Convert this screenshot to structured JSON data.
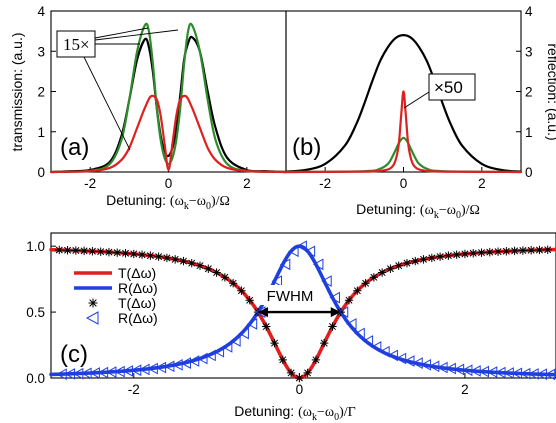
{
  "chart_data": [
    {
      "panel": "(a)",
      "type": "line",
      "ylabel": "transmission: (a.u.)",
      "xlabel_text": "Detuning: ",
      "xlabel_math": "(ω",
      "xlabel_sub1": "k",
      "xlabel_mid": "−ω",
      "xlabel_sub2": "0",
      "xlabel_end": ")/Ω",
      "xlim": [
        -3,
        3
      ],
      "ylim": [
        0,
        4
      ],
      "xticks": [
        "-2",
        "0",
        "2"
      ],
      "yticks": [
        "0",
        "1",
        "2",
        "3",
        "4"
      ],
      "annotation": "15×",
      "series": [
        {
          "color": "#000000",
          "x": [
            -3,
            -2.5,
            -2,
            -1.5,
            -1.2,
            -1,
            -0.8,
            -0.6,
            -0.5,
            -0.4,
            -0.3,
            -0.2,
            -0.1,
            0,
            0.1,
            0.2,
            0.3,
            0.4,
            0.5,
            0.6,
            0.8,
            1,
            1.2,
            1.5,
            2,
            2.5,
            3
          ],
          "y": [
            0,
            0.02,
            0.05,
            0.25,
            0.9,
            1.8,
            2.8,
            3.3,
            3.1,
            2.5,
            1.6,
            0.9,
            0.5,
            0.4,
            0.6,
            1.1,
            1.9,
            2.8,
            3.2,
            3.35,
            3.0,
            2.0,
            1.1,
            0.35,
            0.05,
            0.02,
            0
          ]
        },
        {
          "color": "#2e8b2e",
          "x": [
            -3,
            -2,
            -1.5,
            -1.2,
            -1,
            -0.8,
            -0.6,
            -0.5,
            -0.4,
            -0.3,
            -0.2,
            -0.1,
            0,
            0.1,
            0.2,
            0.3,
            0.4,
            0.5,
            0.6,
            0.8,
            1,
            1.2,
            1.5,
            2,
            3
          ],
          "y": [
            0,
            0.03,
            0.2,
            0.8,
            1.8,
            3.0,
            3.65,
            3.5,
            2.7,
            1.6,
            0.8,
            0.35,
            0.2,
            0.35,
            0.8,
            1.6,
            2.7,
            3.5,
            3.65,
            3.0,
            1.8,
            0.8,
            0.2,
            0.03,
            0
          ]
        },
        {
          "color": "#e02020",
          "x": [
            -3,
            -2,
            -1.5,
            -1.2,
            -1,
            -0.8,
            -0.6,
            -0.45,
            -0.3,
            -0.2,
            -0.1,
            0,
            0.1,
            0.2,
            0.3,
            0.45,
            0.6,
            0.8,
            1,
            1.2,
            1.5,
            2,
            3
          ],
          "y": [
            0,
            0.02,
            0.1,
            0.3,
            0.6,
            1.1,
            1.6,
            1.88,
            1.8,
            1.4,
            0.7,
            0.05,
            0.7,
            1.4,
            1.8,
            1.88,
            1.6,
            1.1,
            0.6,
            0.3,
            0.1,
            0.02,
            0
          ]
        }
      ]
    },
    {
      "panel": "(b)",
      "type": "line",
      "ylabel": "reflection: (a.u.)",
      "xlabel_text": "Detuning: ",
      "xlabel_math": "(ω",
      "xlabel_sub1": "k",
      "xlabel_mid": "−ω",
      "xlabel_sub2": "0",
      "xlabel_end": ")/Ω",
      "xlim": [
        -3,
        3
      ],
      "ylim": [
        0,
        4
      ],
      "xticks": [
        "-2",
        "0",
        "2"
      ],
      "yticks": [
        "0",
        "1",
        "2",
        "3",
        "4"
      ],
      "annotation": "×50",
      "series": [
        {
          "color": "#000000",
          "x": [
            -3,
            -2.5,
            -2,
            -1.5,
            -1.2,
            -1,
            -0.8,
            -0.6,
            -0.4,
            -0.2,
            0,
            0.2,
            0.4,
            0.6,
            0.8,
            1,
            1.2,
            1.5,
            2,
            2.5,
            3
          ],
          "y": [
            0.01,
            0.05,
            0.2,
            0.65,
            1.2,
            1.7,
            2.25,
            2.75,
            3.1,
            3.33,
            3.4,
            3.33,
            3.1,
            2.75,
            2.25,
            1.7,
            1.2,
            0.65,
            0.2,
            0.05,
            0.01
          ]
        },
        {
          "color": "#2e8b2e",
          "x": [
            -3,
            -1,
            -0.6,
            -0.4,
            -0.3,
            -0.2,
            -0.1,
            0,
            0.1,
            0.2,
            0.3,
            0.4,
            0.6,
            1,
            3
          ],
          "y": [
            0,
            0.02,
            0.08,
            0.2,
            0.35,
            0.55,
            0.75,
            0.85,
            0.75,
            0.55,
            0.35,
            0.2,
            0.08,
            0.02,
            0
          ]
        },
        {
          "color": "#e02020",
          "x": [
            -3,
            -1,
            -0.5,
            -0.3,
            -0.2,
            -0.12,
            -0.06,
            0,
            0.06,
            0.12,
            0.2,
            0.3,
            0.5,
            1,
            3
          ],
          "y": [
            0,
            0.01,
            0.04,
            0.12,
            0.3,
            0.7,
            1.4,
            2.0,
            1.4,
            0.7,
            0.3,
            0.12,
            0.04,
            0.01,
            0
          ]
        }
      ]
    },
    {
      "panel": "(c)",
      "type": "line",
      "xlabel_text": "Detuning: ",
      "xlabel_math": "(ω",
      "xlabel_sub1": "k",
      "xlabel_mid": "−ω",
      "xlabel_sub2": "0",
      "xlabel_end": ")/Γ",
      "xlim": [
        -3,
        3.1
      ],
      "ylim": [
        0,
        1.1
      ],
      "xticks": [
        "-2",
        "0",
        "2"
      ],
      "yticks": [
        "0.0",
        "0.5",
        "1.0"
      ],
      "annotation": "FWHM",
      "fwhm_range": [
        -0.5,
        0.5
      ],
      "fwhm_level": 0.5,
      "legend": [
        "T(Δω)",
        "R(Δω)",
        "T(Δω)",
        "R(Δω)"
      ],
      "legend_position": "middle-left",
      "lorentz_halfwidth": 0.5,
      "series": [
        {
          "name": "T(Δω)",
          "style": "line",
          "color": "#e02020",
          "model": "transmission"
        },
        {
          "name": "R(Δω)",
          "style": "line",
          "color": "#1f3fe0",
          "model": "reflection"
        },
        {
          "name": "T(Δω)",
          "style": "star",
          "color": "#000000",
          "model": "transmission"
        },
        {
          "name": "R(Δω)",
          "style": "triangle",
          "color": "#1f3fe0",
          "model": "reflection"
        }
      ]
    }
  ]
}
